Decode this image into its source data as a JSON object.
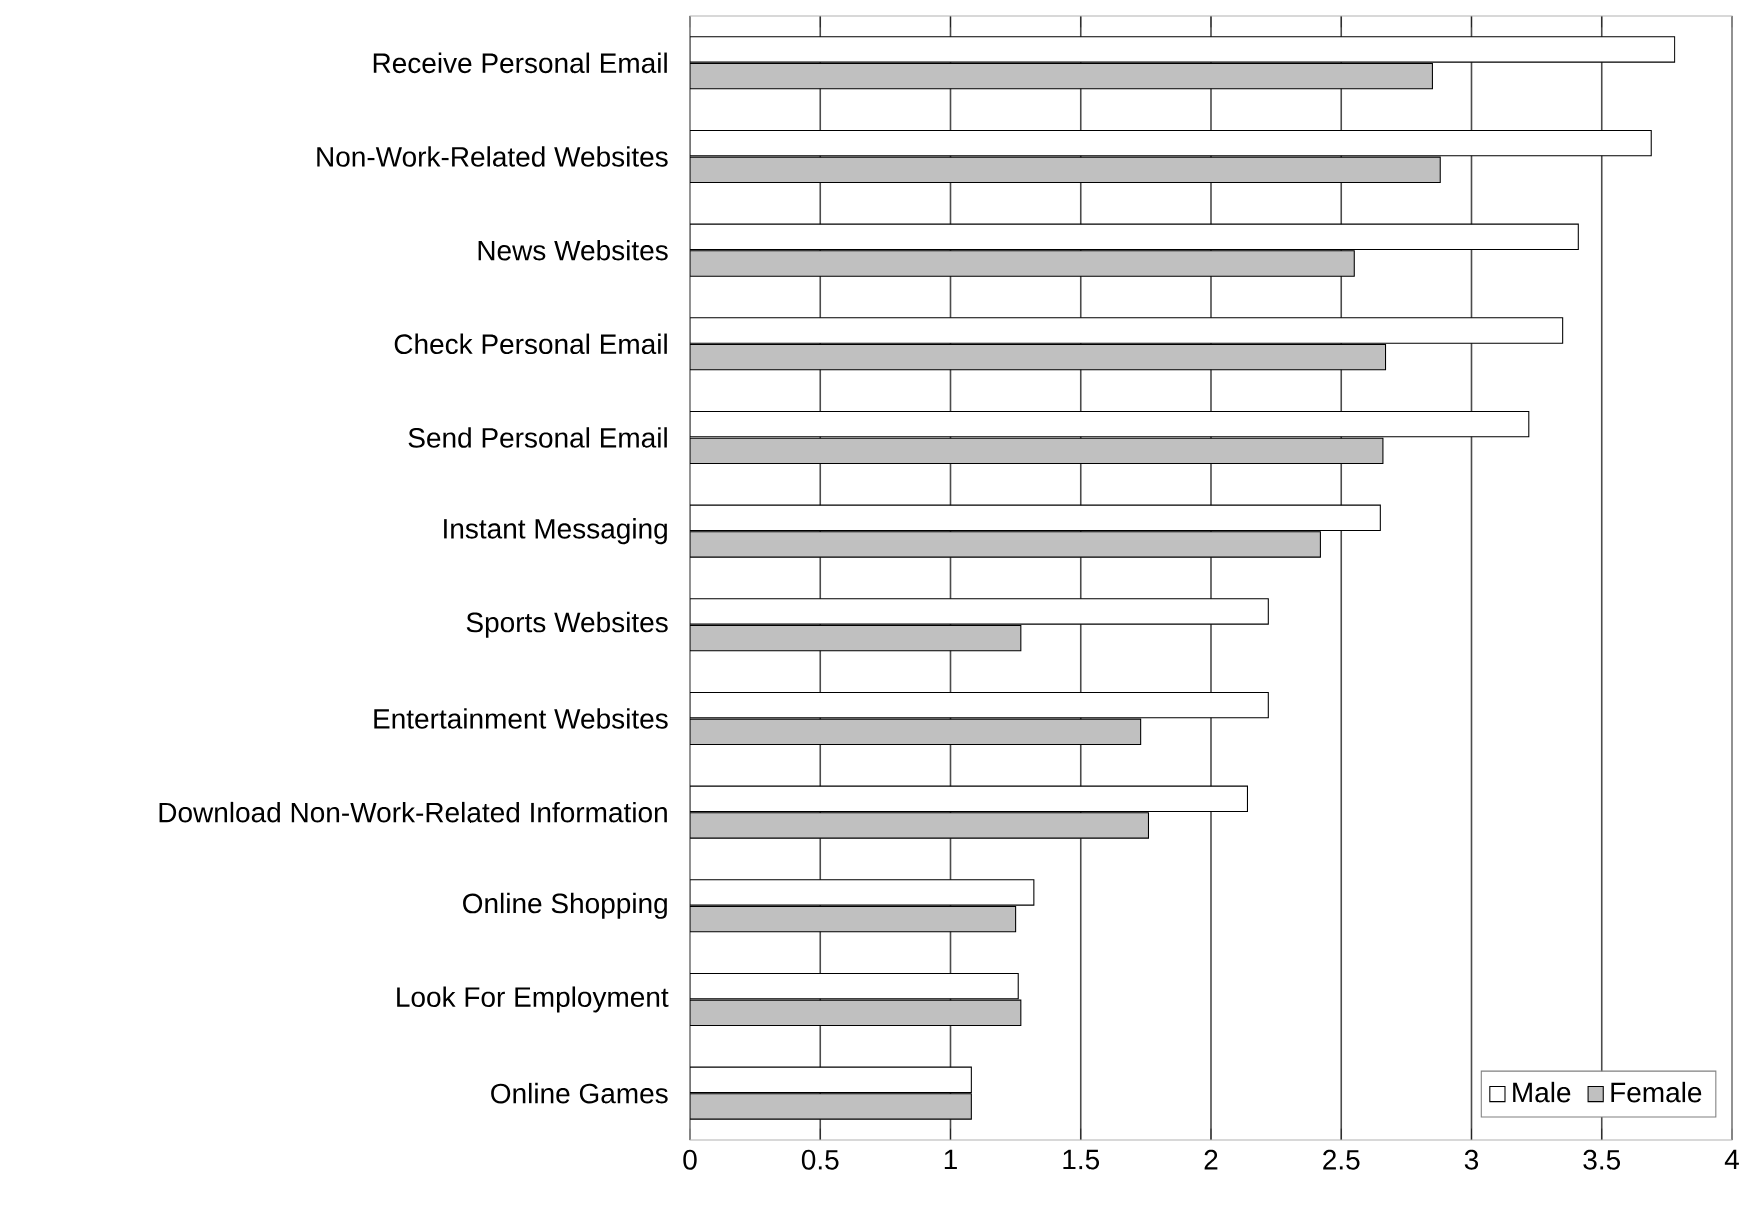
{
  "chart_data": {
    "type": "bar",
    "orientation": "horizontal",
    "categories": [
      "Receive Personal Email",
      "Non-Work-Related Websites",
      "News Websites",
      "Check Personal Email",
      "Send Personal Email",
      "Instant Messaging",
      "Sports Websites",
      "Entertainment Websites",
      "Download Non-Work-Related Information",
      "Online Shopping",
      "Look For Employment",
      "Online Games"
    ],
    "series": [
      {
        "name": "Male",
        "color": "#ffffff",
        "values": [
          3.78,
          3.69,
          3.41,
          3.35,
          3.22,
          2.65,
          2.22,
          2.22,
          2.14,
          1.32,
          1.26,
          1.08
        ]
      },
      {
        "name": "Female",
        "color": "#c0c0c0",
        "values": [
          2.85,
          2.88,
          2.55,
          2.67,
          2.66,
          2.42,
          1.27,
          1.73,
          1.76,
          1.25,
          1.27,
          1.08
        ]
      }
    ],
    "xlim": [
      0,
      4
    ],
    "xticks": [
      0,
      0.5,
      1,
      1.5,
      2,
      2.5,
      3,
      3.5,
      4
    ],
    "grid": "x",
    "legend": "bottom right"
  }
}
